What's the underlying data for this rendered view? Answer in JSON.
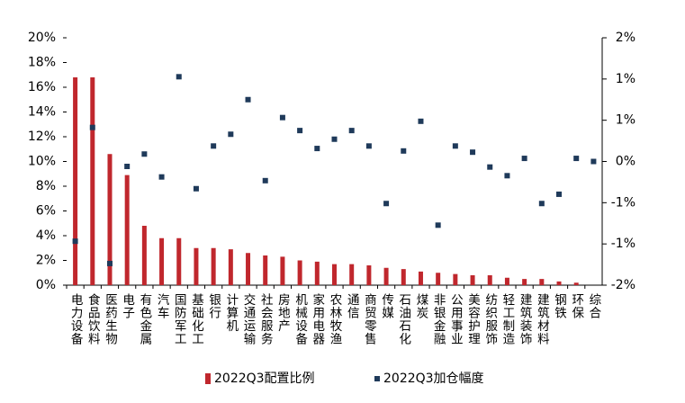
{
  "chart_data": {
    "type": "bar",
    "categories": [
      "电力设备",
      "食品饮料",
      "医药生物",
      "电子",
      "有色金属",
      "汽车",
      "国防军工",
      "基础化工",
      "银行",
      "计算机",
      "交通运输",
      "社会服务",
      "房地产",
      "机械设备",
      "家用电器",
      "农林牧渔",
      "通信",
      "商贸零售",
      "传媒",
      "石油石化",
      "煤炭",
      "非银金融",
      "公用事业",
      "美容护理",
      "纺织服饰",
      "轻工制造",
      "建筑装饰",
      "建筑材料",
      "钢铁",
      "环保",
      "综合"
    ],
    "series": [
      {
        "name": "2022Q3配置比例",
        "type": "bar",
        "color": "#c0272d",
        "values": [
          16.8,
          16.8,
          10.6,
          8.9,
          4.8,
          3.8,
          3.8,
          3.0,
          3.0,
          2.9,
          2.6,
          2.4,
          2.3,
          2.0,
          1.9,
          1.7,
          1.7,
          1.6,
          1.4,
          1.3,
          1.1,
          1.0,
          0.9,
          0.8,
          0.8,
          0.6,
          0.5,
          0.5,
          0.3,
          0.2,
          0
        ]
      },
      {
        "name": "2022Q3加仓幅度",
        "type": "scatter",
        "axis": "y2",
        "color": "#1f3a5a",
        "values": [
          -1.29,
          0.55,
          -1.65,
          -0.08,
          0.12,
          -0.25,
          1.37,
          -0.44,
          0.25,
          0.44,
          1.0,
          -0.31,
          0.71,
          0.5,
          0.21,
          0.36,
          0.5,
          0.25,
          -0.68,
          0.17,
          0.65,
          -1.03,
          0.25,
          0.15,
          -0.09,
          -0.23,
          0.05,
          -0.68,
          -0.53,
          0.05,
          0
        ]
      }
    ],
    "ylim": [
      0,
      20
    ],
    "yticks": [
      {
        "value": 0,
        "label": "0%"
      },
      {
        "value": 2,
        "label": "2%"
      },
      {
        "value": 4,
        "label": "4%"
      },
      {
        "value": 6,
        "label": "6%"
      },
      {
        "value": 8,
        "label": "8%"
      },
      {
        "value": 10,
        "label": "10%"
      },
      {
        "value": 12,
        "label": "12%"
      },
      {
        "value": 14,
        "label": "14%"
      },
      {
        "value": 16,
        "label": "16%"
      },
      {
        "value": 18,
        "label": "18%"
      },
      {
        "value": 20,
        "label": "20%"
      }
    ],
    "y2lim": [
      -2,
      2
    ],
    "y2ticks": [
      {
        "value": -2,
        "label": "-2%"
      },
      {
        "value": -1.3333,
        "label": "-1%"
      },
      {
        "value": -0.6667,
        "label": "-1%"
      },
      {
        "value": 0,
        "label": "0%"
      },
      {
        "value": 0.6667,
        "label": "1%"
      },
      {
        "value": 1.3333,
        "label": "1%"
      },
      {
        "value": 2,
        "label": "2%"
      }
    ],
    "legend": "bottom",
    "grid": false
  }
}
